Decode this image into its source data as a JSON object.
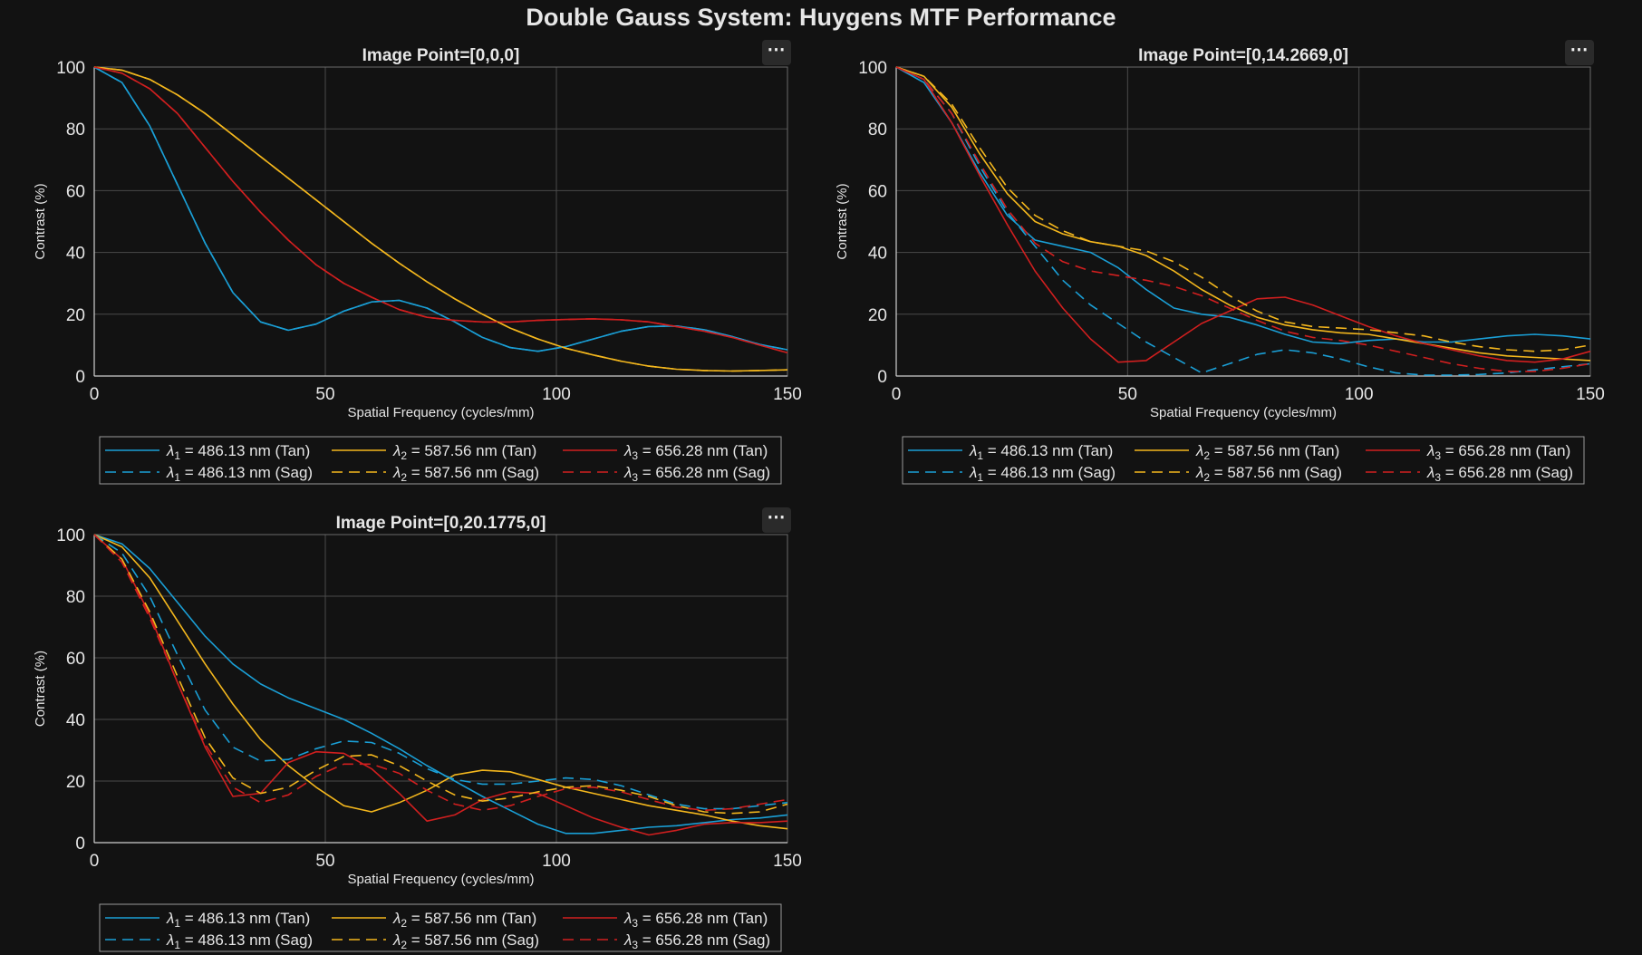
{
  "figure": {
    "title": "Double Gauss System: Huygens MTF Performance"
  },
  "colors": {
    "background": "#121212",
    "axes_bg": "#121212",
    "grid": "#4a4a4a",
    "text": "#e6e6e6",
    "blue": "#1a9fd6",
    "yellow": "#f4b71d",
    "red": "#d11f1f"
  },
  "icons": {
    "axes_menu": "ellipsis-icon"
  },
  "menu_glyph": "⋯",
  "legend_entries": [
    {
      "sym": "λ",
      "sub": "1",
      "text": " = 486.13 nm (Tan)",
      "color": "blue",
      "dash": false
    },
    {
      "sym": "λ",
      "sub": "2",
      "text": " = 587.56 nm (Tan)",
      "color": "yellow",
      "dash": false
    },
    {
      "sym": "λ",
      "sub": "3",
      "text": " = 656.28 nm (Tan)",
      "color": "red",
      "dash": false
    },
    {
      "sym": "λ",
      "sub": "1",
      "text": " = 486.13 nm (Sag)",
      "color": "blue",
      "dash": true
    },
    {
      "sym": "λ",
      "sub": "2",
      "text": " = 587.56 nm (Sag)",
      "color": "yellow",
      "dash": true
    },
    {
      "sym": "λ",
      "sub": "3",
      "text": " = 656.28 nm (Sag)",
      "color": "red",
      "dash": true
    }
  ],
  "chart_data": [
    {
      "type": "line",
      "title": "Image Point=[0,0,0]",
      "xlabel": "Spatial Frequency (cycles/mm)",
      "ylabel": "Contrast (%)",
      "xlim": [
        0,
        150
      ],
      "ylim": [
        0,
        100
      ],
      "xticks": [
        0,
        50,
        100,
        150
      ],
      "yticks": [
        0,
        20,
        40,
        60,
        80,
        100
      ],
      "grid": true,
      "legend": "below",
      "x": [
        0,
        6,
        12,
        18,
        24,
        30,
        36,
        42,
        48,
        54,
        60,
        66,
        72,
        78,
        84,
        90,
        96,
        102,
        108,
        114,
        120,
        126,
        132,
        138,
        144,
        150
      ],
      "series": [
        {
          "name": "λ1 = 486.13 nm (Tan)",
          "color": "blue",
          "dash": false,
          "values": [
            100,
            95,
            81,
            62,
            43,
            27,
            17.5,
            14.8,
            16.8,
            21,
            24,
            24.5,
            22,
            17.5,
            12.5,
            9.2,
            8,
            9.5,
            12,
            14.5,
            16,
            16.2,
            15,
            12.8,
            10.2,
            8.5
          ]
        },
        {
          "name": "λ2 = 587.56 nm (Tan)",
          "color": "yellow",
          "dash": false,
          "values": [
            100,
            99,
            96,
            91,
            85,
            78,
            71,
            64,
            57,
            50,
            43,
            36.5,
            30.5,
            25,
            20,
            15.5,
            12,
            9,
            6.8,
            4.8,
            3.2,
            2.2,
            1.8,
            1.6,
            1.8,
            2
          ]
        },
        {
          "name": "λ3 = 656.28 nm (Tan)",
          "color": "red",
          "dash": false,
          "values": [
            100,
            98,
            93,
            85,
            74,
            63,
            53,
            44,
            36,
            30,
            25.5,
            21.5,
            19,
            18,
            17.5,
            17.5,
            18,
            18.3,
            18.5,
            18.2,
            17.5,
            16,
            14.5,
            12.5,
            10,
            7.5
          ]
        },
        {
          "name": "λ1 = 486.13 nm (Sag)",
          "color": "blue",
          "dash": true,
          "values": [
            100,
            95,
            81,
            62,
            43,
            27,
            17.5,
            14.8,
            16.8,
            21,
            24,
            24.5,
            22,
            17.5,
            12.5,
            9.2,
            8,
            9.5,
            12,
            14.5,
            16,
            16.2,
            15,
            12.8,
            10.2,
            8.5
          ]
        },
        {
          "name": "λ2 = 587.56 nm (Sag)",
          "color": "yellow",
          "dash": true,
          "values": [
            100,
            99,
            96,
            91,
            85,
            78,
            71,
            64,
            57,
            50,
            43,
            36.5,
            30.5,
            25,
            20,
            15.5,
            12,
            9,
            6.8,
            4.8,
            3.2,
            2.2,
            1.8,
            1.6,
            1.8,
            2
          ]
        },
        {
          "name": "λ3 = 656.28 nm (Sag)",
          "color": "red",
          "dash": true,
          "values": [
            100,
            98,
            93,
            85,
            74,
            63,
            53,
            44,
            36,
            30,
            25.5,
            21.5,
            19,
            18,
            17.5,
            17.5,
            18,
            18.3,
            18.5,
            18.2,
            17.5,
            16,
            14.5,
            12.5,
            10,
            7.5
          ]
        }
      ]
    },
    {
      "type": "line",
      "title": "Image Point=[0,14.2669,0]",
      "xlabel": "Spatial Frequency (cycles/mm)",
      "ylabel": "Contrast (%)",
      "xlim": [
        0,
        150
      ],
      "ylim": [
        0,
        100
      ],
      "xticks": [
        0,
        50,
        100,
        150
      ],
      "yticks": [
        0,
        20,
        40,
        60,
        80,
        100
      ],
      "grid": true,
      "legend": "below",
      "x": [
        0,
        6,
        12,
        18,
        24,
        30,
        36,
        42,
        48,
        54,
        60,
        66,
        72,
        78,
        84,
        90,
        96,
        102,
        108,
        114,
        120,
        126,
        132,
        138,
        144,
        150
      ],
      "series": [
        {
          "name": "λ1 = 486.13 nm (Tan)",
          "color": "blue",
          "dash": false,
          "values": [
            100,
            95,
            82,
            66,
            52,
            44,
            42,
            40,
            35,
            28,
            22,
            20,
            19,
            16.5,
            13.5,
            11,
            10.5,
            11.5,
            12,
            11,
            11,
            12,
            13,
            13.5,
            13,
            12
          ]
        },
        {
          "name": "λ2 = 587.56 nm (Tan)",
          "color": "yellow",
          "dash": false,
          "values": [
            100,
            97,
            87,
            72,
            59,
            50,
            46,
            43.5,
            42,
            39,
            34,
            28,
            23,
            19,
            16.5,
            15,
            14,
            13.5,
            12,
            10.5,
            9,
            7.5,
            6.5,
            6,
            5.5,
            5
          ]
        },
        {
          "name": "λ3 = 656.28 nm (Tan)",
          "color": "red",
          "dash": false,
          "values": [
            100,
            96,
            82,
            65,
            49,
            34,
            22,
            12,
            4.5,
            5,
            11,
            17,
            21,
            25,
            25.5,
            23,
            19.5,
            16,
            13,
            10.5,
            8.5,
            6.5,
            5,
            4.5,
            5.5,
            8
          ]
        },
        {
          "name": "λ1 = 486.13 nm (Sag)",
          "color": "blue",
          "dash": true,
          "values": [
            100,
            96,
            85,
            68,
            53,
            42,
            31,
            23,
            17,
            11,
            6,
            1,
            4,
            7,
            8.5,
            7.5,
            5.5,
            3,
            1,
            0.3,
            0.3,
            0.5,
            1,
            2,
            3,
            4
          ]
        },
        {
          "name": "λ2 = 587.56 nm (Sag)",
          "color": "yellow",
          "dash": true,
          "values": [
            100,
            97,
            88,
            74,
            61,
            52,
            47,
            43.5,
            42,
            40.5,
            37,
            32,
            26,
            21,
            17.5,
            16,
            15.5,
            15,
            14,
            13,
            11,
            9.5,
            8.5,
            8,
            8.5,
            10
          ]
        },
        {
          "name": "λ3 = 656.28 nm (Sag)",
          "color": "red",
          "dash": true,
          "values": [
            100,
            96,
            85,
            69,
            54,
            43,
            37,
            34,
            32.5,
            31,
            29,
            26,
            22,
            18,
            14.5,
            12.5,
            11.5,
            10,
            8,
            6,
            4,
            2.5,
            1.5,
            1.5,
            2.5,
            4
          ]
        }
      ]
    },
    {
      "type": "line",
      "title": "Image Point=[0,20.1775,0]",
      "xlabel": "Spatial Frequency (cycles/mm)",
      "ylabel": "Contrast (%)",
      "xlim": [
        0,
        150
      ],
      "ylim": [
        0,
        100
      ],
      "xticks": [
        0,
        50,
        100,
        150
      ],
      "yticks": [
        0,
        20,
        40,
        60,
        80,
        100
      ],
      "grid": true,
      "legend": "below",
      "x": [
        0,
        6,
        12,
        18,
        24,
        30,
        36,
        42,
        48,
        54,
        60,
        66,
        72,
        78,
        84,
        90,
        96,
        102,
        108,
        114,
        120,
        126,
        132,
        138,
        144,
        150
      ],
      "series": [
        {
          "name": "λ1 = 486.13 nm (Tan)",
          "color": "blue",
          "dash": false,
          "values": [
            100,
            97,
            89,
            78,
            67,
            58,
            51.5,
            47,
            43.5,
            40,
            35.5,
            30.5,
            25,
            20,
            15,
            10.5,
            6,
            3,
            3,
            4,
            5,
            5.5,
            6.5,
            7.5,
            8,
            9
          ]
        },
        {
          "name": "λ2 = 587.56 nm (Tan)",
          "color": "yellow",
          "dash": false,
          "values": [
            100,
            96,
            86,
            72,
            58,
            45,
            33.5,
            25,
            18,
            12,
            10,
            13,
            17,
            22,
            23.5,
            23,
            20.5,
            18,
            16,
            14,
            12,
            10.5,
            9,
            7,
            5.5,
            4.5
          ]
        },
        {
          "name": "λ3 = 656.28 nm (Tan)",
          "color": "red",
          "dash": false,
          "values": [
            100,
            92,
            74,
            52,
            31,
            15,
            16,
            26,
            29.5,
            29,
            24,
            16,
            7,
            9,
            14,
            16.5,
            16,
            12,
            8,
            5,
            2.5,
            4,
            6,
            6.5,
            6.5,
            7
          ]
        },
        {
          "name": "λ1 = 486.13 nm (Sag)",
          "color": "blue",
          "dash": true,
          "values": [
            100,
            94,
            80,
            61,
            43,
            31,
            26.5,
            27,
            30.5,
            33,
            32.5,
            29,
            24,
            20.5,
            19,
            19,
            20,
            21,
            20.5,
            18.5,
            15.5,
            12.5,
            11,
            11,
            12,
            13
          ]
        },
        {
          "name": "λ2 = 587.56 nm (Sag)",
          "color": "yellow",
          "dash": true,
          "values": [
            100,
            92,
            75,
            54,
            34,
            21,
            16,
            18,
            23.5,
            28,
            28.5,
            25,
            20,
            15.5,
            13.5,
            14.5,
            16.5,
            18,
            18.5,
            17,
            15,
            12,
            10,
            9.5,
            10,
            12.5
          ]
        },
        {
          "name": "λ3 = 656.28 nm (Sag)",
          "color": "red",
          "dash": true,
          "values": [
            100,
            91,
            73,
            52,
            32,
            18,
            13,
            15.5,
            21.5,
            25.5,
            25.5,
            22.5,
            17,
            12.5,
            10.5,
            12,
            15,
            17.5,
            18,
            16.5,
            14,
            11.5,
            10.5,
            11,
            12.5,
            14
          ]
        }
      ]
    }
  ]
}
